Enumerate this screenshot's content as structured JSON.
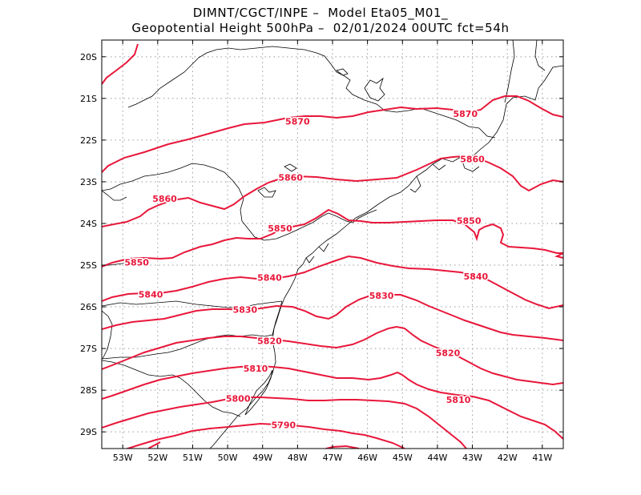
{
  "header": {
    "line1": "DIMNT/CGCT/INPE –  Model Eta05_M01_",
    "line2": "Geopotential Height 500hPa –  02/01/2024 00UTC fct=54h"
  },
  "map": {
    "lon_range": [
      -53.6,
      -40.4
    ],
    "lat_range": [
      -29.4,
      -19.6
    ],
    "lon_ticks": [
      "53W",
      "52W",
      "51W",
      "50W",
      "49W",
      "48W",
      "47W",
      "46W",
      "45W",
      "44W",
      "43W",
      "42W",
      "41W"
    ],
    "lat_ticks": [
      "20S",
      "21S",
      "22S",
      "23S",
      "24S",
      "25S",
      "26S",
      "27S",
      "28S",
      "29S"
    ],
    "contour_color": "#e8173a",
    "coast_color": "#000000",
    "grid_color": "#9a9a9a",
    "contour_labels": [
      {
        "text": "5870",
        "lon": -48.0,
        "lat": -21.55
      },
      {
        "text": "5870",
        "lon": -43.2,
        "lat": -21.37
      },
      {
        "text": "5860",
        "lon": -51.8,
        "lat": -23.4
      },
      {
        "text": "5860",
        "lon": -48.2,
        "lat": -22.9
      },
      {
        "text": "5860",
        "lon": -43.0,
        "lat": -22.45
      },
      {
        "text": "5850",
        "lon": -48.5,
        "lat": -24.12
      },
      {
        "text": "5850",
        "lon": -43.1,
        "lat": -23.93
      },
      {
        "text": "5850",
        "lon": -52.6,
        "lat": -24.93
      },
      {
        "text": "5840",
        "lon": -52.2,
        "lat": -25.7
      },
      {
        "text": "5840",
        "lon": -48.8,
        "lat": -25.3
      },
      {
        "text": "5840",
        "lon": -42.9,
        "lat": -25.27
      },
      {
        "text": "5830",
        "lon": -49.5,
        "lat": -26.07
      },
      {
        "text": "5830",
        "lon": -45.6,
        "lat": -25.73
      },
      {
        "text": "5820",
        "lon": -48.8,
        "lat": -26.82
      },
      {
        "text": "5820",
        "lon": -43.7,
        "lat": -27.1
      },
      {
        "text": "5810",
        "lon": -49.2,
        "lat": -27.48
      },
      {
        "text": "5810",
        "lon": -43.4,
        "lat": -28.23
      },
      {
        "text": "5800",
        "lon": -49.7,
        "lat": -28.2
      },
      {
        "text": "5790",
        "lon": -48.4,
        "lat": -28.83
      }
    ]
  }
}
